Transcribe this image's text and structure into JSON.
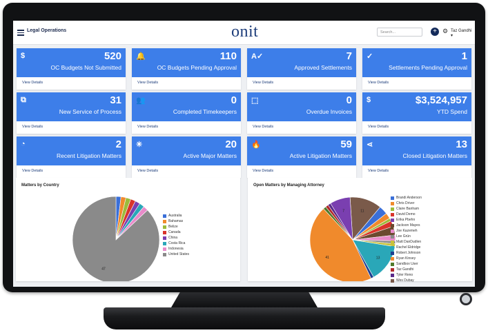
{
  "header": {
    "app_title": "Legal Operations",
    "logo": "onit",
    "search_placeholder": "Search...",
    "add_label": "+",
    "user_name": "Taz Gandhi",
    "user_chevron": "▾"
  },
  "cards": [
    {
      "value": "520",
      "label": "OC Budgets Not Submitted",
      "link": "View Details",
      "icon": "dollar-icon"
    },
    {
      "value": "110",
      "label": "OC Budgets Pending Approval",
      "link": "View Details",
      "icon": "bell-icon"
    },
    {
      "value": "7",
      "label": "Approved Settlements",
      "link": "View Details",
      "icon": "spellcheck-icon"
    },
    {
      "value": "1",
      "label": "Settlements Pending Approval",
      "link": "View Details",
      "icon": "check-icon"
    },
    {
      "value": "31",
      "label": "New Service of Process",
      "link": "View Details",
      "icon": "open-in-new-icon"
    },
    {
      "value": "0",
      "label": "Completed Timekeepers",
      "link": "View Details",
      "icon": "people-icon"
    },
    {
      "value": "0",
      "label": "Overdue Invoices",
      "link": "View Details",
      "icon": "frame-icon"
    },
    {
      "value": "$3,524,957",
      "label": "YTD Spend",
      "link": "View Details",
      "icon": "dollar-icon"
    },
    {
      "value": "2",
      "label": "Recent Litigation Matters",
      "link": "View Details",
      "icon": "timelapse-icon"
    },
    {
      "value": "20",
      "label": "Active Major Matters",
      "link": "View Details",
      "icon": "sparkle-icon"
    },
    {
      "value": "59",
      "label": "Active Litigation Matters",
      "link": "View Details",
      "icon": "fire-icon"
    },
    {
      "value": "13",
      "label": "Closed Litigation Matters",
      "link": "View Details",
      "icon": "share-icon"
    }
  ],
  "chart_data": [
    {
      "type": "pie",
      "title": "Matters by Country",
      "categories": [
        "Australia",
        "Bahamas",
        "Belize",
        "Canada",
        "China",
        "Costa Rica",
        "Indonesia",
        "United States"
      ],
      "values": [
        1,
        1,
        1,
        1,
        1,
        1,
        1,
        47
      ],
      "colors": [
        "#3a6fd8",
        "#f08a2c",
        "#9bbb3a",
        "#d9342b",
        "#7a3fb0",
        "#2aa7b8",
        "#e88bc9",
        "#8a8a8a"
      ],
      "data_labels": {
        "United States": "47"
      }
    },
    {
      "type": "pie",
      "title": "Open Matters by Managing Attorney",
      "categories": [
        "Brandi Anderson",
        "Chris Driver",
        "Claire Banham",
        "David Demo",
        "Erika Pbehn",
        "Jackson Mayes",
        "Joe Kazemeh",
        "Lee Grün",
        "Matt DanDudlen",
        "Rachel Eldridge",
        "Robert Johnson",
        "Ryan Kinsey",
        "Sandbox User",
        "Taz Gandhi",
        "Tyler Reno",
        "Wes Dubay"
      ],
      "values": [
        3,
        2,
        1,
        2,
        7,
        3,
        2,
        1,
        1,
        13,
        1,
        41,
        1,
        1,
        1,
        11
      ],
      "plot_order": [
        "Wes Dubay",
        "Brandi Anderson",
        "Chris Driver",
        "Claire Banham",
        "David Demo",
        "Jackson Mayes",
        "Joe Kazemeh",
        "Lee Grün",
        "Matt DanDudlen",
        "Rachel Eldridge",
        "Robert Johnson",
        "Ryan Kinsey",
        "Sandbox User",
        "Taz Gandhi",
        "Tyler Reno",
        "Erika Pbehn"
      ],
      "colors": {
        "Brandi Anderson": "#3a6fd8",
        "Chris Driver": "#f08a2c",
        "Claire Banham": "#9bbb3a",
        "David Demo": "#d9342b",
        "Erika Pbehn": "#7a3fb0",
        "Jackson Mayes": "#6b4a2f",
        "Joe Kazemeh": "#e88bc9",
        "Lee Grün": "#8a8a8a",
        "Matt DanDudlen": "#c9c23a",
        "Rachel Eldridge": "#2aa7b8",
        "Robert Johnson": "#1f3f8f",
        "Ryan Kinsey": "#f08a2c",
        "Sandbox User": "#4f7a2a",
        "Taz Gandhi": "#b22a2a",
        "Tyler Reno": "#5a2a8a",
        "Wes Dubay": "#7a5a4a"
      },
      "data_labels": {
        "Wes Dubay": "11",
        "Erika Pbehn": "7",
        "Rachel Eldridge": "13",
        "Ryan Kinsey": "41"
      }
    }
  ]
}
